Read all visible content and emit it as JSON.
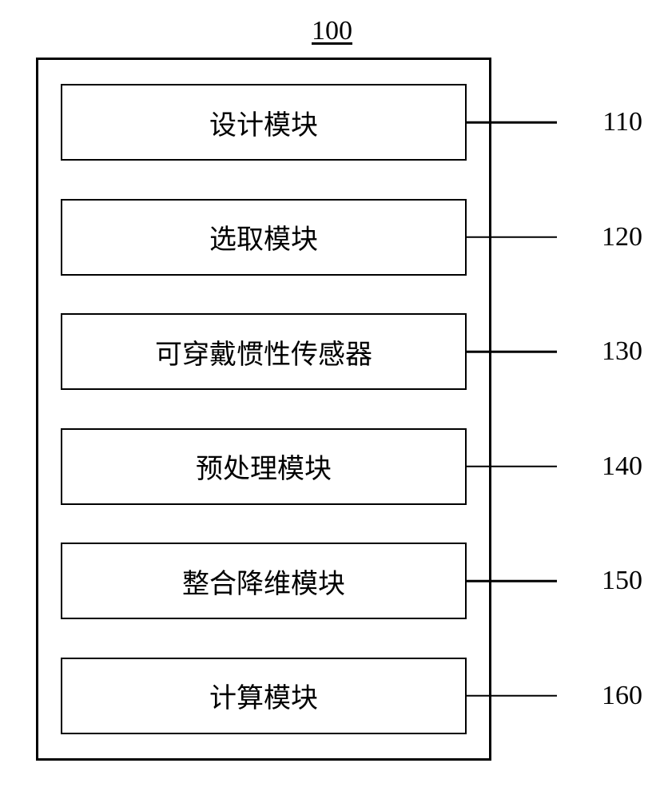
{
  "diagram": {
    "type": "block-diagram",
    "title_number": "100",
    "container": {
      "border_color": "#000000",
      "border_width": 3,
      "background_color": "#ffffff"
    },
    "modules": [
      {
        "label": "设计模块",
        "number": "110"
      },
      {
        "label": "选取模块",
        "number": "120"
      },
      {
        "label": "可穿戴惯性传感器",
        "number": "130"
      },
      {
        "label": "预处理模块",
        "number": "140"
      },
      {
        "label": "整合降维模块",
        "number": "150"
      },
      {
        "label": "计算模块",
        "number": "160"
      }
    ],
    "styling": {
      "module_border_color": "#000000",
      "module_border_width": 2.5,
      "module_background": "#ffffff",
      "text_color": "#000000",
      "font_size": 34,
      "connector_line_color": "#000000",
      "connector_line_width": 2.5
    }
  }
}
